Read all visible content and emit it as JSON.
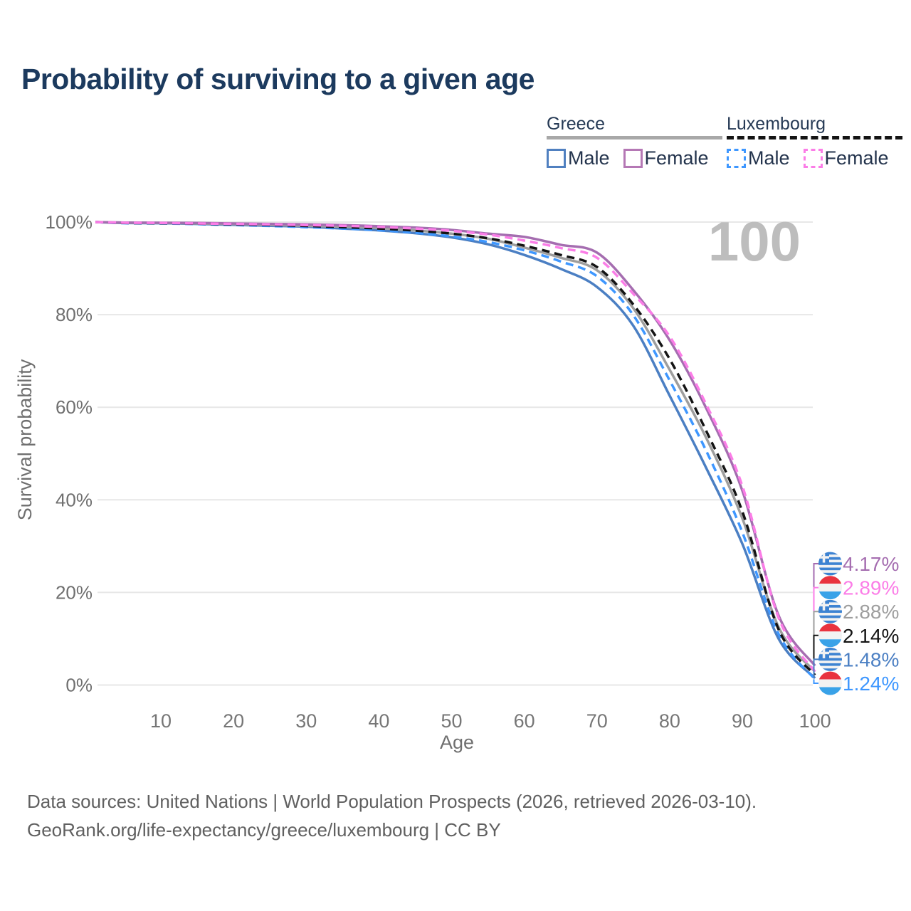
{
  "title": "Probability of surviving to a given age",
  "legend": {
    "groups": [
      {
        "id": "greece",
        "label": "Greece",
        "line_color": "#a8a8a8",
        "line_style": "solid",
        "items": [
          {
            "id": "greece-male",
            "label": "Male",
            "color": "#5080c0",
            "box_style": "solid"
          },
          {
            "id": "greece-female",
            "label": "Female",
            "color": "#b578b5",
            "box_style": "solid"
          }
        ]
      },
      {
        "id": "luxembourg",
        "label": "Luxembourg",
        "line_color": "#141414",
        "line_style": "dashed",
        "items": [
          {
            "id": "luxembourg-male",
            "label": "Male",
            "color": "#3e97ff",
            "box_style": "dashed"
          },
          {
            "id": "luxembourg-female",
            "label": "Female",
            "color": "#fb7de7",
            "box_style": "dashed"
          }
        ]
      }
    ]
  },
  "watermark": "100",
  "chart_data": {
    "type": "line",
    "title": "Probability of surviving to a given age",
    "xlabel": "Age",
    "ylabel": "Survival probability",
    "xlim": [
      1,
      100
    ],
    "ylim": [
      0,
      100
    ],
    "grid": "horizontal",
    "x_ticks": [
      10,
      20,
      30,
      40,
      50,
      60,
      70,
      80,
      90,
      100
    ],
    "y_ticks": [
      {
        "value": 0,
        "label": "0%"
      },
      {
        "value": 20,
        "label": "20%"
      },
      {
        "value": 40,
        "label": "40%"
      },
      {
        "value": 60,
        "label": "60%"
      },
      {
        "value": 80,
        "label": "80%"
      },
      {
        "value": 100,
        "label": "100%"
      }
    ],
    "ages": [
      1,
      5,
      10,
      15,
      20,
      25,
      30,
      35,
      40,
      45,
      50,
      55,
      60,
      65,
      70,
      75,
      80,
      85,
      90,
      95,
      100
    ],
    "series": [
      {
        "id": "greece-female",
        "name": "Greece Female",
        "country": "Greece",
        "sex": "Female",
        "color": "#a56db0",
        "dash": "solid",
        "flag": "greece",
        "end_label": "4.17%",
        "end_value": 4.17,
        "values": [
          100,
          99.9,
          99.85,
          99.8,
          99.7,
          99.6,
          99.5,
          99.35,
          99.1,
          98.8,
          98.3,
          97.5,
          96.8,
          95.1,
          93.4,
          85.3,
          74.5,
          59.9,
          42.0,
          15.0,
          4.17
        ]
      },
      {
        "id": "luxembourg-female",
        "name": "Luxembourg Female",
        "country": "Luxembourg",
        "sex": "Female",
        "color": "#fb7de7",
        "dash": "dashed",
        "flag": "luxembourg",
        "end_label": "2.89%",
        "end_value": 2.89,
        "values": [
          100,
          99.85,
          99.8,
          99.7,
          99.6,
          99.5,
          99.35,
          99.2,
          98.95,
          98.6,
          98.1,
          97.3,
          96.0,
          94.4,
          92.3,
          84.5,
          75.3,
          60.7,
          43.0,
          14.5,
          2.89
        ]
      },
      {
        "id": "greece-total",
        "name": "Greece",
        "country": "Greece",
        "sex": "Both",
        "color": "#9e9e9e",
        "dash": "solid",
        "flag": "greece",
        "end_label": "2.88%",
        "end_value": 2.88,
        "values": [
          100,
          99.85,
          99.8,
          99.7,
          99.55,
          99.4,
          99.2,
          99.0,
          98.7,
          98.2,
          97.5,
          96.4,
          94.5,
          92.3,
          89.6,
          81.4,
          68.1,
          53.5,
          36.0,
          12.5,
          2.88
        ]
      },
      {
        "id": "luxembourg-total",
        "name": "Luxembourg",
        "country": "Luxembourg",
        "sex": "Both",
        "color": "#141414",
        "dash": "dashed",
        "flag": "luxembourg",
        "end_label": "2.14%",
        "end_value": 2.14,
        "values": [
          100,
          99.8,
          99.75,
          99.65,
          99.5,
          99.35,
          99.15,
          98.9,
          98.6,
          98.15,
          97.5,
          96.5,
          94.9,
          92.9,
          90.3,
          82.2,
          70.4,
          55.0,
          37.5,
          12.0,
          2.14
        ]
      },
      {
        "id": "greece-male",
        "name": "Greece Male",
        "country": "Greece",
        "sex": "Male",
        "color": "#4b7fc3",
        "dash": "solid",
        "flag": "greece",
        "end_label": "1.48%",
        "end_value": 1.48,
        "values": [
          100,
          99.8,
          99.75,
          99.6,
          99.4,
          99.2,
          99.0,
          98.6,
          98.2,
          97.6,
          96.7,
          95.2,
          92.9,
          89.9,
          86.0,
          77.6,
          62.5,
          47.0,
          30.5,
          10.0,
          1.48
        ]
      },
      {
        "id": "luxembourg-male",
        "name": "Luxembourg Male",
        "country": "Luxembourg",
        "sex": "Male",
        "color": "#3e97ff",
        "dash": "dashed",
        "flag": "luxembourg",
        "end_label": "1.24%",
        "end_value": 1.24,
        "values": [
          100,
          99.75,
          99.7,
          99.55,
          99.35,
          99.15,
          98.9,
          98.6,
          98.25,
          97.7,
          96.9,
          95.7,
          93.9,
          91.5,
          88.3,
          79.9,
          65.8,
          50.7,
          33.0,
          11.0,
          1.24
        ]
      }
    ],
    "draw_order": [
      "greece-male",
      "luxembourg-male",
      "greece-total",
      "luxembourg-total",
      "greece-female",
      "luxembourg-female"
    ],
    "flag_colors": {
      "greece_blue": "#3d83d2",
      "lux_red": "#e9333f",
      "lux_white": "#f2f2f2",
      "lux_blue": "#39a2e8"
    }
  },
  "footer": {
    "line1": "Data sources: United Nations | World Population Prospects (2026, retrieved 2026-03-10).",
    "line2": "GeoRank.org/life-expectancy/greece/luxembourg | CC BY"
  }
}
